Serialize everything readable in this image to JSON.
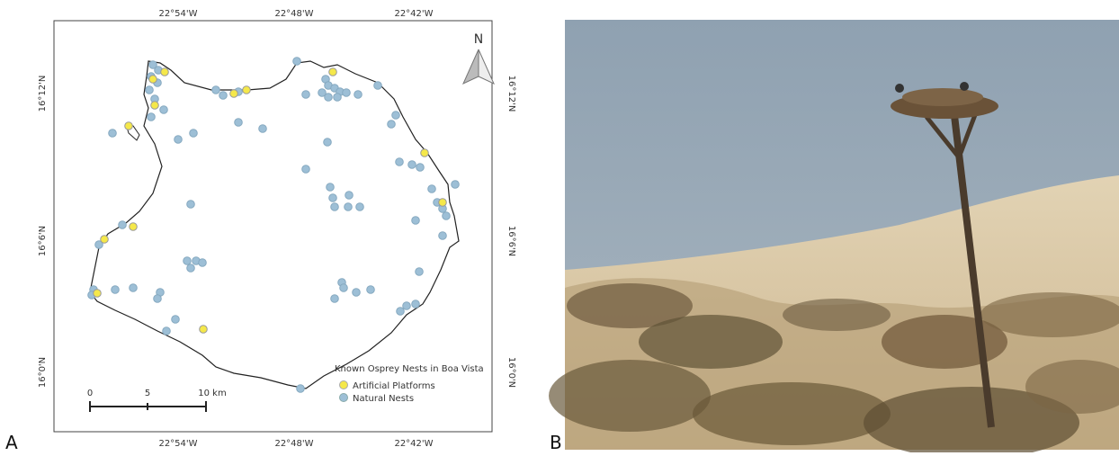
{
  "panel_labels": [
    "A",
    "B"
  ],
  "map": {
    "lon_labels_top": [
      "22°54'W",
      "22°48'W",
      "22°42'W"
    ],
    "lon_labels_bottom": [
      "22°54'W",
      "22°48'W",
      "22°42'W"
    ],
    "lat_labels_left": [
      "16°12'N",
      "16°6'N",
      "16°0'N"
    ],
    "lat_labels_right": [
      "16°12'N",
      "16°6'N",
      "16°0'N"
    ],
    "north": "N",
    "legend": {
      "title": "Known Osprey Nests in Boa Vista",
      "items": [
        "Artificial Platforms",
        "Natural Nests"
      ]
    },
    "scale": {
      "labels": [
        "0",
        "5",
        "10 km"
      ]
    }
  }
}
